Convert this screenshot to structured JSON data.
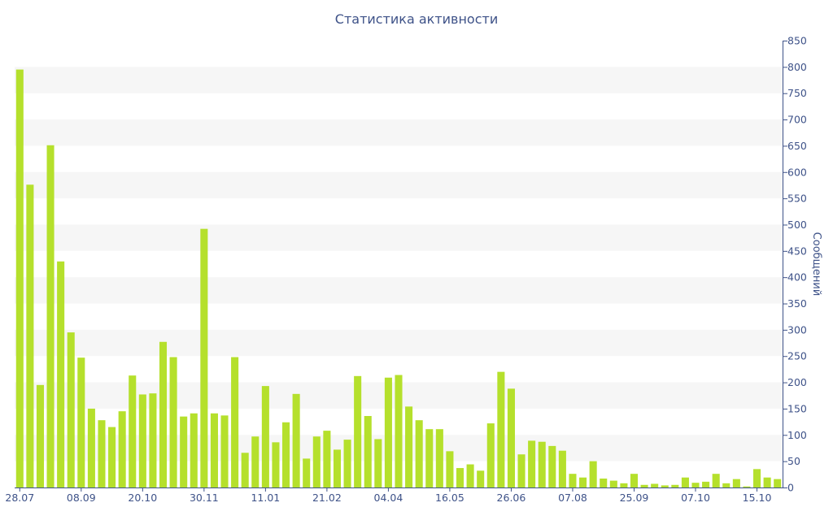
{
  "chart_data": {
    "type": "bar",
    "title": "Статистика активности",
    "ylabel": "Сообщений",
    "xlabel": "",
    "ylim": [
      0,
      850
    ],
    "y_ticks": [
      0,
      50,
      100,
      150,
      200,
      250,
      300,
      350,
      400,
      450,
      500,
      550,
      600,
      650,
      700,
      750,
      800,
      850
    ],
    "y_axis_side": "right",
    "grid": "horizontal alternating bands",
    "legend": "none",
    "bar_color": "#b5e02c",
    "band_color": "#f6f6f6",
    "text_color": "#3e5288",
    "x_tick_labels": [
      {
        "index": 0,
        "label": "28.07"
      },
      {
        "index": 6,
        "label": "08.09"
      },
      {
        "index": 12,
        "label": "20.10"
      },
      {
        "index": 18,
        "label": "30.11"
      },
      {
        "index": 24,
        "label": "11.01"
      },
      {
        "index": 30,
        "label": "21.02"
      },
      {
        "index": 36,
        "label": "04.04"
      },
      {
        "index": 42,
        "label": "16.05"
      },
      {
        "index": 48,
        "label": "26.06"
      },
      {
        "index": 54,
        "label": "07.08"
      },
      {
        "index": 60,
        "label": "25.09"
      },
      {
        "index": 66,
        "label": "07.10"
      },
      {
        "index": 72,
        "label": "15.10"
      }
    ],
    "values": [
      795,
      576,
      195,
      651,
      430,
      295,
      247,
      150,
      128,
      115,
      145,
      213,
      177,
      179,
      277,
      248,
      135,
      141,
      492,
      141,
      137,
      248,
      66,
      97,
      193,
      86,
      124,
      178,
      55,
      97,
      108,
      72,
      91,
      212,
      136,
      92,
      209,
      214,
      154,
      128,
      111,
      111,
      69,
      37,
      44,
      32,
      122,
      220,
      188,
      63,
      89,
      87,
      79,
      70,
      26,
      19,
      50,
      17,
      13,
      8,
      26,
      5,
      7,
      4,
      5,
      19,
      9,
      11,
      26,
      8,
      16,
      2,
      35,
      19,
      16
    ]
  }
}
